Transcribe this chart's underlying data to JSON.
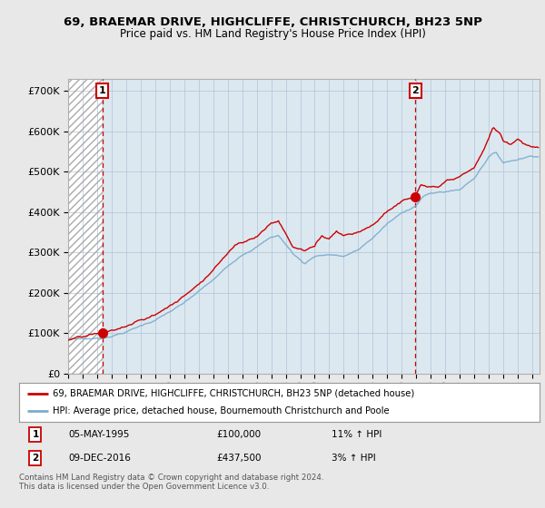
{
  "title1": "69, BRAEMAR DRIVE, HIGHCLIFFE, CHRISTCHURCH, BH23 5NP",
  "title2": "Price paid vs. HM Land Registry's House Price Index (HPI)",
  "legend_line1": "69, BRAEMAR DRIVE, HIGHCLIFFE, CHRISTCHURCH, BH23 5NP (detached house)",
  "legend_line2": "HPI: Average price, detached house, Bournemouth Christchurch and Poole",
  "sale1_label": "1",
  "sale1_date": "05-MAY-1995",
  "sale1_price": "£100,000",
  "sale1_hpi": "11% ↑ HPI",
  "sale1_year": 1995.35,
  "sale1_value": 100000,
  "sale2_label": "2",
  "sale2_date": "09-DEC-2016",
  "sale2_price": "£437,500",
  "sale2_hpi": "3% ↑ HPI",
  "sale2_year": 2016.94,
  "sale2_value": 437500,
  "red_line_color": "#cc0000",
  "blue_line_color": "#7aabcc",
  "hatch_color": "#aaaaaa",
  "bg_color": "#e8e8e8",
  "plot_bg": "#dce8f0",
  "ylim": [
    0,
    730000
  ],
  "yticks": [
    0,
    100000,
    200000,
    300000,
    400000,
    500000,
    600000,
    700000
  ],
  "footer": "Contains HM Land Registry data © Crown copyright and database right 2024.\nThis data is licensed under the Open Government Licence v3.0.",
  "xmin": 1993,
  "xmax": 2025.5
}
